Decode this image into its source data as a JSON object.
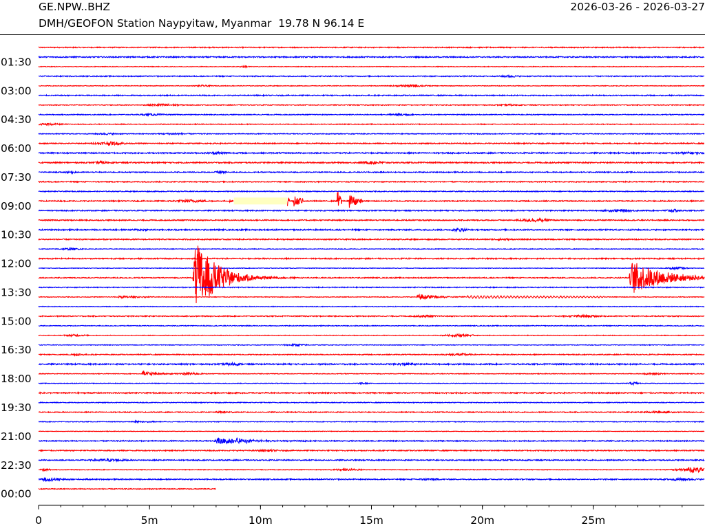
{
  "header": {
    "station_code": "GE.NPW..BHZ",
    "date_range": "2026-03-26 - 2026-03-27",
    "description": "DMH/GEOFON Station Naypyitaw, Myanmar  19.78 N 96.14 E"
  },
  "chart_data": {
    "type": "line",
    "title": "GE.NPW..BHZ",
    "subtitle": "DMH/GEOFON Station Naypyitaw, Myanmar  19.78 N 96.14 E",
    "xlabel": "",
    "ylabel": "",
    "x_unit": "minutes",
    "xlim": [
      0,
      30
    ],
    "x_ticks": [
      0,
      5,
      10,
      15,
      20,
      25
    ],
    "x_tick_labels": [
      "0",
      "5m",
      "10m",
      "15m",
      "20m",
      "25m"
    ],
    "x_minor_tick_step_minutes": 1,
    "row_interval_minutes": 30,
    "row_count": 47,
    "last_row_end_minutes": 8,
    "y_tick_labels": [
      "01:30",
      "03:00",
      "04:30",
      "06:00",
      "07:30",
      "09:00",
      "10:30",
      "12:00",
      "13:30",
      "15:00",
      "16:30",
      "18:00",
      "19:30",
      "21:00",
      "22:30",
      "00:00"
    ],
    "y_tick_rows": [
      2,
      5,
      8,
      11,
      14,
      17,
      20,
      23,
      26,
      29,
      32,
      35,
      38,
      41,
      44,
      47
    ],
    "colors": {
      "even_rows": "#ff0000",
      "odd_rows": "#0000ff",
      "gap_fill": "#ffffc0"
    },
    "events": [
      {
        "row": 16,
        "kind": "gap",
        "start_min": 8.8,
        "end_min": 11.2
      },
      {
        "row": 16,
        "kind": "spike",
        "start_min": 8.6,
        "end_min": 8.75,
        "amp": 0.4,
        "decay": 0.2
      },
      {
        "row": 16,
        "kind": "spike",
        "start_min": 11.15,
        "end_min": 11.3,
        "amp": 1.8,
        "decay": 0.2
      },
      {
        "row": 16,
        "kind": "spike",
        "start_min": 11.45,
        "end_min": 11.9,
        "amp": 1.4,
        "decay": 0.5
      },
      {
        "row": 16,
        "kind": "spike",
        "start_min": 13.45,
        "end_min": 13.7,
        "amp": 2.8,
        "decay": 0.3
      },
      {
        "row": 16,
        "kind": "spike",
        "start_min": 14.0,
        "end_min": 14.6,
        "amp": 1.8,
        "decay": 0.4
      },
      {
        "row": 24,
        "kind": "quake",
        "start_min": 6.95,
        "end_min": 12.0,
        "amp": 10.5,
        "decay": 0.95
      },
      {
        "row": 24,
        "kind": "quake",
        "start_min": 26.6,
        "end_min": 30.0,
        "amp": 4.6,
        "decay": 1.4
      },
      {
        "row": 26,
        "kind": "quake",
        "start_min": 17.0,
        "end_min": 19.5,
        "amp": 0.8,
        "decay": 0.9
      },
      {
        "row": 26,
        "kind": "quake",
        "start_min": 3.5,
        "end_min": 5.2,
        "amp": 0.35,
        "decay": 1.0
      },
      {
        "row": 26,
        "kind": "wave",
        "start_min": 19.3,
        "end_min": 25.5,
        "amp": 0.35,
        "decay": 9.0
      },
      {
        "row": 34,
        "kind": "quake",
        "start_min": 4.6,
        "end_min": 6.5,
        "amp": 0.9,
        "decay": 0.55
      },
      {
        "row": 39,
        "kind": "quake",
        "start_min": 4.2,
        "end_min": 5.5,
        "amp": 0.3,
        "decay": 0.7
      },
      {
        "row": 41,
        "kind": "quake",
        "start_min": 7.9,
        "end_min": 15.5,
        "amp": 0.8,
        "decay": 1.4
      },
      {
        "row": 44,
        "kind": "quake",
        "start_min": 29.1,
        "end_min": 30.0,
        "amp": 0.7,
        "decay": 2.0
      },
      {
        "row": 44,
        "kind": "quake",
        "start_min": 0.05,
        "end_min": 0.6,
        "amp": 0.5,
        "decay": 0.3
      },
      {
        "row": 45,
        "kind": "quake",
        "start_min": 0.1,
        "end_min": 2.5,
        "amp": 0.6,
        "decay": 0.8
      }
    ]
  }
}
